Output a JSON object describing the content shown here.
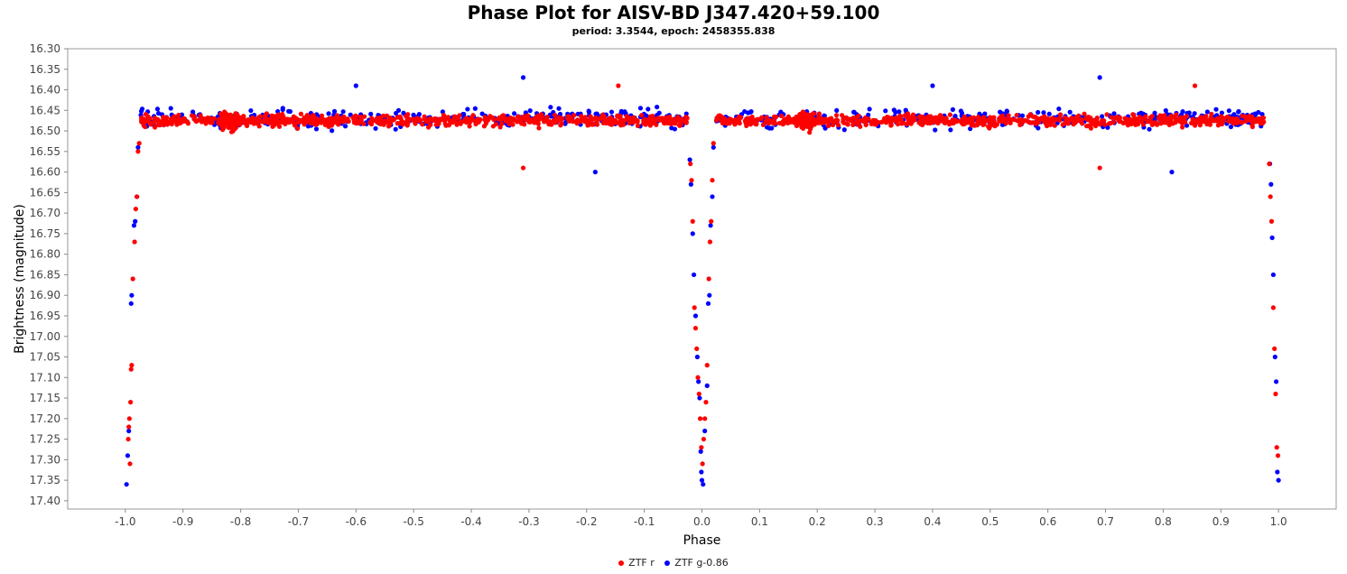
{
  "title": "Phase Plot for AISV-BD J347.420+59.100",
  "subtitle": "period: 3.3544, epoch: 2458355.838",
  "colors": {
    "red": "#ff0000",
    "blue": "#0000ff",
    "plot_bg": "#ffffff",
    "frame": "#999999"
  },
  "chart_data": {
    "type": "scatter",
    "title": "Phase Plot for AISV-BD J347.420+59.100",
    "subtitle": "period: 3.3544, epoch: 2458355.838",
    "xlabel": "Phase",
    "ylabel": "Brightness (magnitude)",
    "xlim": [
      -1.1,
      1.1
    ],
    "ylim": [
      16.3,
      17.42
    ],
    "y_inverted": true,
    "grid": false,
    "legend_position": "bottom",
    "x_ticks": [
      "-1.0",
      "-0.9",
      "-0.8",
      "-0.7",
      "-0.6",
      "-0.5",
      "-0.4",
      "-0.3",
      "-0.2",
      "-0.1",
      "0.0",
      "0.1",
      "0.2",
      "0.3",
      "0.4",
      "0.5",
      "0.6",
      "0.7",
      "0.8",
      "0.9",
      "1.0"
    ],
    "y_ticks": [
      "16.30",
      "16.35",
      "16.40",
      "16.45",
      "16.50",
      "16.55",
      "16.60",
      "16.65",
      "16.70",
      "16.75",
      "16.80",
      "16.85",
      "16.90",
      "16.95",
      "17.00",
      "17.05",
      "17.10",
      "17.15",
      "17.20",
      "17.25",
      "17.30",
      "17.35",
      "17.40"
    ],
    "series": [
      {
        "name": "ZTF r",
        "color": "#ff0000",
        "baseline_mag": 16.475,
        "points": [
          [
            -0.992,
            17.31
          ],
          [
            -0.995,
            17.25
          ],
          [
            -0.994,
            17.22
          ],
          [
            -0.993,
            17.2
          ],
          [
            -0.991,
            17.16
          ],
          [
            -0.99,
            17.08
          ],
          [
            -0.989,
            17.07
          ],
          [
            -0.987,
            16.86
          ],
          [
            -0.984,
            16.77
          ],
          [
            -0.982,
            16.69
          ],
          [
            -0.98,
            16.66
          ],
          [
            -0.978,
            16.55
          ],
          [
            -0.976,
            16.53
          ],
          [
            -0.145,
            16.39
          ],
          [
            -0.31,
            16.59
          ],
          [
            0.69,
            16.59
          ],
          [
            0.855,
            16.39
          ],
          [
            -0.02,
            16.58
          ],
          [
            -0.018,
            16.62
          ],
          [
            -0.016,
            16.72
          ],
          [
            -0.013,
            16.93
          ],
          [
            -0.011,
            16.98
          ],
          [
            -0.009,
            17.03
          ],
          [
            -0.007,
            17.1
          ],
          [
            -0.005,
            17.14
          ],
          [
            -0.003,
            17.2
          ],
          [
            -0.001,
            17.27
          ],
          [
            0.001,
            17.31
          ],
          [
            0.003,
            17.25
          ],
          [
            0.005,
            17.2
          ],
          [
            0.007,
            17.16
          ],
          [
            0.009,
            17.07
          ],
          [
            0.012,
            16.86
          ],
          [
            0.014,
            16.77
          ],
          [
            0.016,
            16.72
          ],
          [
            0.018,
            16.62
          ],
          [
            0.02,
            16.53
          ],
          [
            0.984,
            16.58
          ],
          [
            0.986,
            16.66
          ],
          [
            0.988,
            16.72
          ],
          [
            0.991,
            16.93
          ],
          [
            0.993,
            17.03
          ],
          [
            0.995,
            17.14
          ],
          [
            0.997,
            17.27
          ],
          [
            0.999,
            17.29
          ]
        ]
      },
      {
        "name": "ZTF g-0.86",
        "color": "#0000ff",
        "baseline_mag": 16.47,
        "points": [
          [
            -0.998,
            17.36
          ],
          [
            -0.996,
            17.29
          ],
          [
            -0.994,
            17.23
          ],
          [
            -0.99,
            16.92
          ],
          [
            -0.989,
            16.9
          ],
          [
            -0.985,
            16.73
          ],
          [
            -0.983,
            16.72
          ],
          [
            -0.98,
            16.66
          ],
          [
            -0.978,
            16.54
          ],
          [
            -0.31,
            16.37
          ],
          [
            0.69,
            16.37
          ],
          [
            -0.185,
            16.6
          ],
          [
            0.815,
            16.6
          ],
          [
            -0.6,
            16.39
          ],
          [
            0.4,
            16.39
          ],
          [
            -0.021,
            16.57
          ],
          [
            -0.019,
            16.63
          ],
          [
            -0.016,
            16.75
          ],
          [
            -0.014,
            16.85
          ],
          [
            -0.011,
            16.95
          ],
          [
            -0.008,
            17.05
          ],
          [
            -0.006,
            17.11
          ],
          [
            -0.004,
            17.15
          ],
          [
            -0.002,
            17.28
          ],
          [
            -0.001,
            17.33
          ],
          [
            0.0,
            17.35
          ],
          [
            0.002,
            17.36
          ],
          [
            0.005,
            17.23
          ],
          [
            0.009,
            17.12
          ],
          [
            0.011,
            16.92
          ],
          [
            0.013,
            16.9
          ],
          [
            0.015,
            16.73
          ],
          [
            0.018,
            16.66
          ],
          [
            0.02,
            16.54
          ],
          [
            0.985,
            16.58
          ],
          [
            0.987,
            16.63
          ],
          [
            0.989,
            16.76
          ],
          [
            0.991,
            16.85
          ],
          [
            0.994,
            17.05
          ],
          [
            0.996,
            17.11
          ],
          [
            0.998,
            17.33
          ],
          [
            1.0,
            17.35
          ]
        ]
      }
    ]
  }
}
